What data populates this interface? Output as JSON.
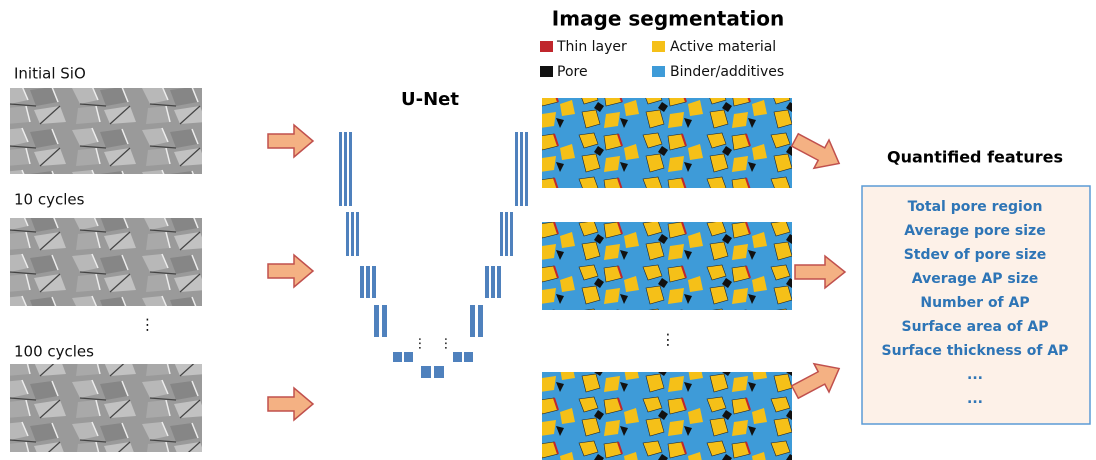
{
  "left_panel": {
    "labels": [
      "Initial SiO",
      "10 cycles",
      "100 cycles"
    ]
  },
  "unet": {
    "title": "U-Net"
  },
  "segmentation": {
    "title": "Image segmentation",
    "legend": [
      "Thin layer",
      "Active material",
      "Pore",
      "Binder/additives"
    ]
  },
  "features": {
    "title": "Quantified features",
    "items": [
      "Total pore region",
      "Average pore size",
      "Stdev of pore size",
      "Average AP size",
      "Number of AP",
      "Surface area of AP",
      "Surface thickness of AP",
      "...",
      "..."
    ]
  }
}
